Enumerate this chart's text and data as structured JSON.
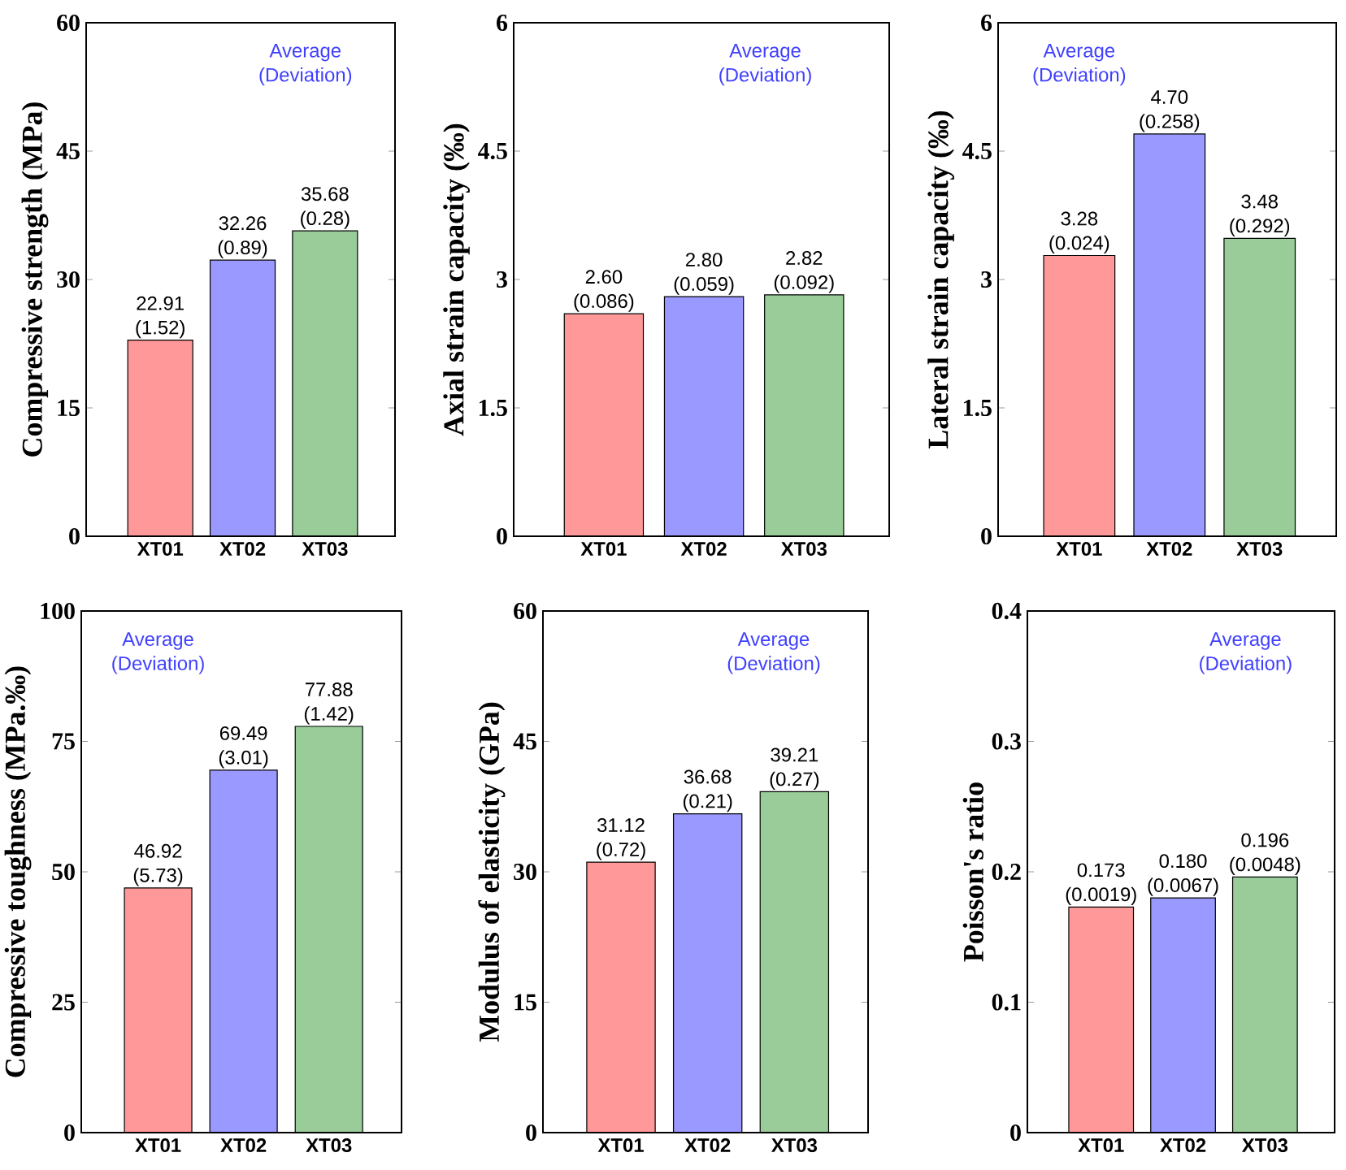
{
  "chart_data": [
    {
      "type": "bar",
      "ylabel": "Compressive strength (MPa)",
      "categories": [
        "XT01",
        "XT02",
        "XT03"
      ],
      "values": [
        22.91,
        32.26,
        35.68
      ],
      "colors": [
        "#ff9999",
        "#9999ff",
        "#99cc99"
      ],
      "ylim": [
        0,
        60
      ],
      "yticks": [
        0,
        15,
        30,
        45,
        60
      ],
      "value_labels": [
        "22.91 (1.52)",
        "32.26 (0.89)",
        "35.68 (0.28)"
      ],
      "annotations": [
        "Average (Deviation)"
      ]
    },
    {
      "type": "bar",
      "ylabel": "Axial strain capacity (‰)",
      "categories": [
        "XT01",
        "XT02",
        "XT03"
      ],
      "values": [
        2.6,
        2.8,
        2.82
      ],
      "colors": [
        "#ff9999",
        "#9999ff",
        "#99cc99"
      ],
      "ylim": [
        0,
        6
      ],
      "yticks": [
        0,
        1.5,
        3,
        4.5,
        6
      ],
      "value_labels": [
        "2.60 (0.086)",
        "2.80 (0.059)",
        "2.82 (0.092)"
      ],
      "annotations": [
        "Average (Deviation)"
      ]
    },
    {
      "type": "bar",
      "ylabel": "Lateral strain capacity (‰)",
      "categories": [
        "XT01",
        "XT02",
        "XT03"
      ],
      "values": [
        3.28,
        4.7,
        3.48
      ],
      "colors": [
        "#ff9999",
        "#9999ff",
        "#99cc99"
      ],
      "ylim": [
        0,
        6
      ],
      "yticks": [
        0,
        1.5,
        3,
        4.5,
        6
      ],
      "value_labels": [
        "3.28 (0.024)",
        "4.70 (0.258)",
        "3.48 (0.292)"
      ],
      "annotations": [
        "Average (Deviation)"
      ]
    },
    {
      "type": "bar",
      "ylabel": "Compressive toughness (MPa.‰)",
      "categories": [
        "XT01",
        "XT02",
        "XT03"
      ],
      "values": [
        46.92,
        69.49,
        77.88
      ],
      "colors": [
        "#ff9999",
        "#9999ff",
        "#99cc99"
      ],
      "ylim": [
        0,
        100
      ],
      "yticks": [
        0,
        25,
        50,
        75,
        100
      ],
      "value_labels": [
        "46.92 (5.73)",
        "69.49 (3.01)",
        "77.88 (1.42)"
      ],
      "annotations": [
        "Average (Deviation)"
      ]
    },
    {
      "type": "bar",
      "ylabel": "Modulus of elasticity (GPa)",
      "categories": [
        "XT01",
        "XT02",
        "XT03"
      ],
      "values": [
        31.12,
        36.68,
        39.21
      ],
      "colors": [
        "#ff9999",
        "#9999ff",
        "#99cc99"
      ],
      "ylim": [
        0,
        60
      ],
      "yticks": [
        0,
        15,
        30,
        45,
        60
      ],
      "value_labels": [
        "31.12 (0.72)",
        "36.68 (0.21)",
        "39.21 (0.27)"
      ],
      "annotations": [
        "Average (Deviation)"
      ]
    },
    {
      "type": "bar",
      "ylabel": "Poisson's ratio",
      "categories": [
        "XT01",
        "XT02",
        "XT03"
      ],
      "values": [
        0.173,
        0.18,
        0.196
      ],
      "colors": [
        "#ff9999",
        "#9999ff",
        "#99cc99"
      ],
      "ylim": [
        0,
        0.4
      ],
      "yticks": [
        0,
        0.1,
        0.2,
        0.3,
        0.4
      ],
      "value_labels": [
        "0.173 (0.0019)",
        "0.180 (0.0067)",
        "0.196 (0.0048)"
      ],
      "annotations": [
        "Average (Deviation)"
      ]
    }
  ]
}
